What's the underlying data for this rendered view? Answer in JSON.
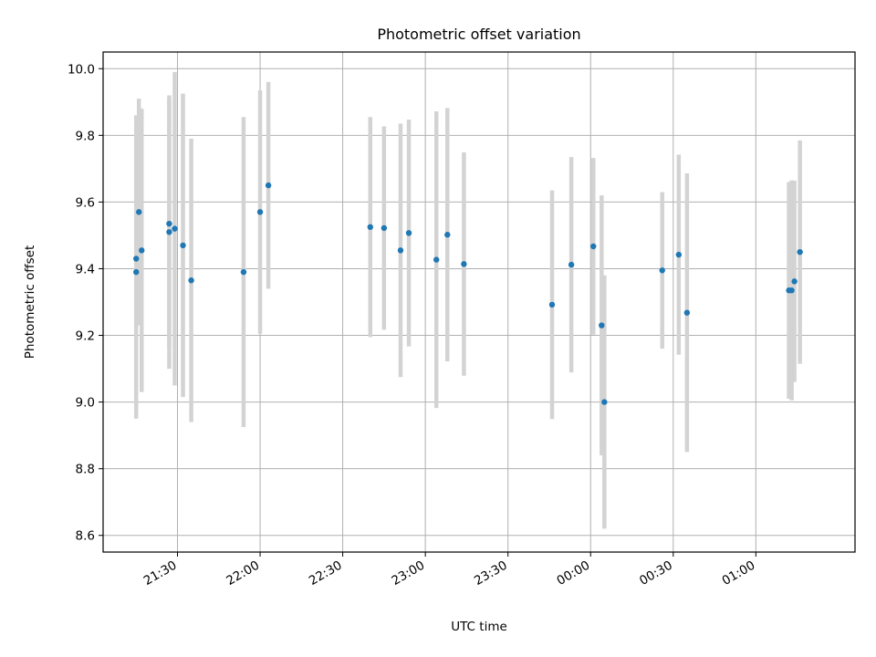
{
  "chart_data": {
    "type": "scatter",
    "title": "Photometric offset variation",
    "xlabel": "UTC time",
    "ylabel": "Photometric offset",
    "xlim": [
      "21:03",
      "01:36"
    ],
    "ylim": [
      8.55,
      10.05
    ],
    "grid": true,
    "x_ticks": [
      "21:30",
      "22:00",
      "22:30",
      "23:00",
      "23:30",
      "00:00",
      "00:30",
      "01:00"
    ],
    "y_ticks": [
      "8.6",
      "8.8",
      "9.0",
      "9.2",
      "9.4",
      "9.6",
      "9.8",
      "10.0"
    ],
    "colors": {
      "point": "#1f77b4",
      "errorbar": "#d3d3d3",
      "grid": "#b0b0b0"
    },
    "points": [
      {
        "x": "21:15",
        "y": 9.39,
        "yerr": 0.44
      },
      {
        "x": "21:15",
        "y": 9.43,
        "yerr": 0.43
      },
      {
        "x": "21:16",
        "y": 9.57,
        "yerr": 0.34
      },
      {
        "x": "21:17",
        "y": 9.455,
        "yerr": 0.425
      },
      {
        "x": "21:27",
        "y": 9.51,
        "yerr": 0.41
      },
      {
        "x": "21:27",
        "y": 9.535,
        "yerr": 0.37
      },
      {
        "x": "21:29",
        "y": 9.52,
        "yerr": 0.47
      },
      {
        "x": "21:32",
        "y": 9.47,
        "yerr": 0.455
      },
      {
        "x": "21:35",
        "y": 9.365,
        "yerr": 0.425
      },
      {
        "x": "21:54",
        "y": 9.39,
        "yerr": 0.465
      },
      {
        "x": "22:00",
        "y": 9.57,
        "yerr": 0.365
      },
      {
        "x": "22:03",
        "y": 9.65,
        "yerr": 0.31
      },
      {
        "x": "22:40",
        "y": 9.525,
        "yerr": 0.33
      },
      {
        "x": "22:45",
        "y": 9.522,
        "yerr": 0.305
      },
      {
        "x": "22:51",
        "y": 9.455,
        "yerr": 0.38
      },
      {
        "x": "22:54",
        "y": 9.507,
        "yerr": 0.34
      },
      {
        "x": "23:04",
        "y": 9.427,
        "yerr": 0.445
      },
      {
        "x": "23:08",
        "y": 9.502,
        "yerr": 0.38
      },
      {
        "x": "23:14",
        "y": 9.414,
        "yerr": 0.335
      },
      {
        "x": "23:46",
        "y": 9.292,
        "yerr": 0.343
      },
      {
        "x": "23:53",
        "y": 9.412,
        "yerr": 0.323
      },
      {
        "x": "00:01",
        "y": 9.467,
        "yerr": 0.265
      },
      {
        "x": "00:04",
        "y": 9.23,
        "yerr": 0.39
      },
      {
        "x": "00:05",
        "y": 9.0,
        "yerr": 0.38
      },
      {
        "x": "00:26",
        "y": 9.395,
        "yerr": 0.235
      },
      {
        "x": "00:32",
        "y": 9.442,
        "yerr": 0.3
      },
      {
        "x": "00:35",
        "y": 9.268,
        "yerr": 0.418
      },
      {
        "x": "01:12",
        "y": 9.335,
        "yerr": 0.325
      },
      {
        "x": "01:13",
        "y": 9.335,
        "yerr": 0.33
      },
      {
        "x": "01:14",
        "y": 9.362,
        "yerr": 0.302
      },
      {
        "x": "01:16",
        "y": 9.45,
        "yerr": 0.335
      }
    ]
  }
}
